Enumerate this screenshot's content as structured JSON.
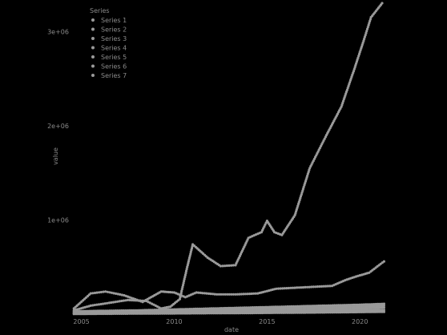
{
  "chart_data": {
    "type": "scatter",
    "title": "",
    "xlabel": "date",
    "ylabel": "value",
    "x_ticks": [
      "2005",
      "2010",
      "2015",
      "2020"
    ],
    "y_ticks": [
      "1e+06",
      "2e+06",
      "3e+06"
    ],
    "ylim": [
      0,
      3300000
    ],
    "grid": false,
    "legend": {
      "title": "Series",
      "placement": "top-left",
      "entries": [
        "Series 1",
        "Series 2",
        "Series 3",
        "Series 4",
        "Series 5",
        "Series 6",
        "Series 7"
      ]
    },
    "series": [
      {
        "color": "#9a9a9a",
        "points": [
          [
            2004.6,
            40000
          ],
          [
            2005.5,
            90000
          ],
          [
            2006.5,
            120000
          ],
          [
            2007.5,
            150000
          ],
          [
            2008.5,
            140000
          ],
          [
            2009.3,
            60000
          ],
          [
            2009.8,
            80000
          ],
          [
            2010.3,
            160000
          ],
          [
            2010.7,
            500000
          ],
          [
            2011.0,
            740000
          ],
          [
            2011.8,
            600000
          ],
          [
            2012.5,
            510000
          ],
          [
            2013.3,
            520000
          ],
          [
            2014.0,
            810000
          ],
          [
            2014.7,
            870000
          ],
          [
            2015.0,
            990000
          ],
          [
            2015.4,
            870000
          ],
          [
            2015.8,
            840000
          ],
          [
            2016.5,
            1050000
          ],
          [
            2017.3,
            1550000
          ],
          [
            2018.2,
            1900000
          ],
          [
            2019.0,
            2200000
          ],
          [
            2019.7,
            2600000
          ],
          [
            2020.2,
            2900000
          ],
          [
            2020.6,
            3150000
          ],
          [
            2021.2,
            3300000
          ]
        ]
      },
      {
        "color": "#9a9a9a",
        "points": [
          [
            2004.6,
            60000
          ],
          [
            2005.5,
            220000
          ],
          [
            2006.3,
            240000
          ],
          [
            2007.3,
            200000
          ],
          [
            2008.3,
            130000
          ],
          [
            2009.3,
            240000
          ],
          [
            2010.0,
            230000
          ],
          [
            2010.6,
            180000
          ],
          [
            2011.2,
            230000
          ],
          [
            2012.3,
            210000
          ],
          [
            2013.3,
            210000
          ],
          [
            2014.5,
            220000
          ],
          [
            2015.5,
            270000
          ],
          [
            2016.5,
            280000
          ],
          [
            2017.5,
            290000
          ],
          [
            2018.5,
            300000
          ],
          [
            2019.2,
            360000
          ],
          [
            2019.8,
            400000
          ],
          [
            2020.5,
            440000
          ],
          [
            2021.3,
            560000
          ]
        ]
      },
      {
        "color": "#9a9a9a",
        "points": [
          [
            2004.6,
            30000
          ],
          [
            2006.0,
            35000
          ],
          [
            2008.0,
            40000
          ],
          [
            2010.0,
            50000
          ],
          [
            2012.0,
            60000
          ],
          [
            2014.0,
            70000
          ],
          [
            2016.0,
            80000
          ],
          [
            2018.0,
            90000
          ],
          [
            2020.0,
            100000
          ],
          [
            2021.3,
            110000
          ]
        ]
      },
      {
        "color": "#9a9a9a",
        "points": [
          [
            2004.6,
            20000
          ],
          [
            2006.0,
            25000
          ],
          [
            2008.0,
            30000
          ],
          [
            2010.0,
            35000
          ],
          [
            2012.0,
            45000
          ],
          [
            2014.0,
            55000
          ],
          [
            2016.0,
            60000
          ],
          [
            2018.0,
            70000
          ],
          [
            2020.0,
            80000
          ],
          [
            2021.3,
            90000
          ]
        ]
      },
      {
        "color": "#9a9a9a",
        "points": [
          [
            2004.6,
            10000
          ],
          [
            2006.0,
            15000
          ],
          [
            2008.0,
            20000
          ],
          [
            2010.0,
            25000
          ],
          [
            2012.0,
            30000
          ],
          [
            2014.0,
            35000
          ],
          [
            2016.0,
            40000
          ],
          [
            2018.0,
            50000
          ],
          [
            2020.0,
            60000
          ],
          [
            2021.3,
            70000
          ]
        ]
      },
      {
        "color": "#9a9a9a",
        "points": [
          [
            2004.6,
            5000
          ],
          [
            2006.0,
            8000
          ],
          [
            2008.0,
            12000
          ],
          [
            2010.0,
            15000
          ],
          [
            2012.0,
            20000
          ],
          [
            2014.0,
            25000
          ],
          [
            2016.0,
            30000
          ],
          [
            2018.0,
            35000
          ],
          [
            2020.0,
            40000
          ],
          [
            2021.3,
            45000
          ]
        ]
      },
      {
        "color": "#9a9a9a",
        "points": [
          [
            2004.6,
            2000
          ],
          [
            2006.0,
            4000
          ],
          [
            2008.0,
            6000
          ],
          [
            2010.0,
            8000
          ],
          [
            2012.0,
            10000
          ],
          [
            2014.0,
            12000
          ],
          [
            2016.0,
            15000
          ],
          [
            2018.0,
            18000
          ],
          [
            2020.0,
            22000
          ],
          [
            2021.3,
            25000
          ]
        ]
      }
    ]
  }
}
